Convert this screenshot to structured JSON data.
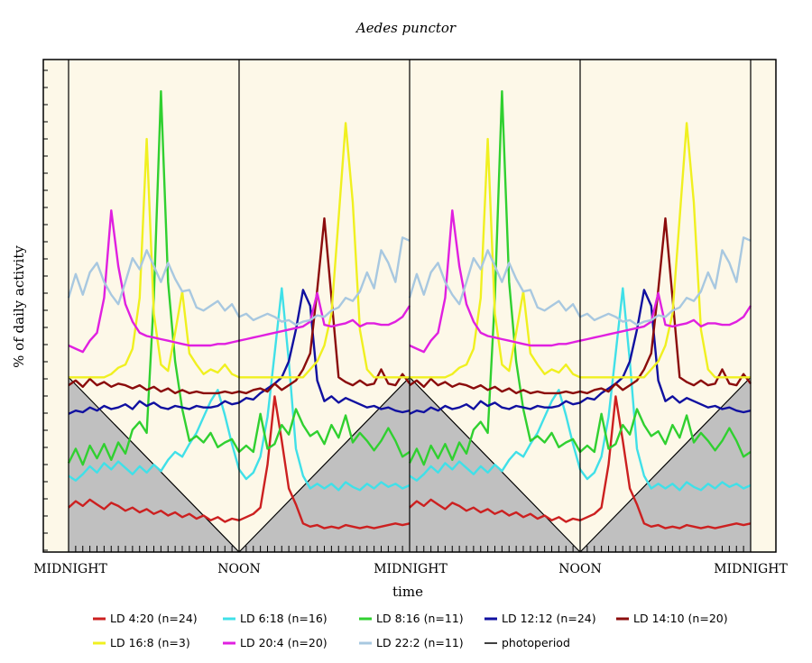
{
  "chart_data": {
    "type": "line",
    "title": "Aedes punctor",
    "xlabel": "time",
    "ylabel": "% of daily activity",
    "x_tick_labels": [
      "MIDNIGHT",
      "NOON",
      "MIDNIGHT",
      "NOON",
      "MIDNIGHT"
    ],
    "x_unit": "hours",
    "x_range": [
      0,
      48
    ],
    "plot_background": "#fdf8e8",
    "dark_background": "#c0c0c0",
    "photoperiod": {
      "name": "photoperiod",
      "color": "#000000"
    },
    "series": [
      {
        "name": "LD 4:20 (n=24)",
        "color": "#cc2020",
        "x": [
          0,
          0.5,
          1,
          1.5,
          2,
          2.5,
          3,
          3.5,
          4,
          4.5,
          5,
          5.5,
          6,
          6.5,
          7,
          7.5,
          8,
          8.5,
          9,
          9.5,
          10,
          10.5,
          11,
          11.5,
          12,
          12.5,
          13,
          13.5,
          14,
          14.5,
          15,
          15.5,
          16,
          16.5,
          17,
          17.5,
          18,
          18.5,
          19,
          19.5,
          20,
          20.5,
          21,
          21.5,
          22,
          22.5,
          23,
          23.5,
          24
        ],
        "y": [
          2.8,
          3.2,
          2.9,
          3.3,
          3.0,
          2.7,
          3.1,
          2.9,
          2.6,
          2.8,
          2.5,
          2.7,
          2.4,
          2.6,
          2.3,
          2.5,
          2.2,
          2.4,
          2.1,
          2.3,
          2.0,
          2.2,
          1.9,
          2.1,
          2.0,
          2.2,
          2.4,
          2.8,
          5.5,
          9.8,
          7.0,
          4.0,
          3.0,
          1.8,
          1.6,
          1.7,
          1.5,
          1.6,
          1.5,
          1.7,
          1.6,
          1.5,
          1.6,
          1.5,
          1.6,
          1.7,
          1.8,
          1.7,
          1.8
        ]
      },
      {
        "name": "LD 6:18 (n=16)",
        "color": "#40e0e8",
        "x": [
          0,
          0.5,
          1,
          1.5,
          2,
          2.5,
          3,
          3.5,
          4,
          4.5,
          5,
          5.5,
          6,
          6.5,
          7,
          7.5,
          8,
          8.5,
          9,
          9.5,
          10,
          10.5,
          11,
          11.5,
          12,
          12.5,
          13,
          13.5,
          14,
          14.5,
          15,
          15.5,
          16,
          16.5,
          17,
          17.5,
          18,
          18.5,
          19,
          19.5,
          20,
          20.5,
          21,
          21.5,
          22,
          22.5,
          23,
          23.5,
          24
        ],
        "y": [
          4.8,
          4.5,
          4.9,
          5.4,
          5.0,
          5.6,
          5.2,
          5.7,
          5.3,
          4.9,
          5.4,
          5.0,
          5.5,
          5.1,
          5.8,
          6.3,
          6.0,
          6.8,
          7.5,
          8.5,
          9.5,
          10.2,
          8.6,
          6.8,
          5.2,
          4.6,
          5.0,
          6.0,
          8.5,
          12.5,
          16.6,
          12.0,
          6.5,
          4.8,
          4.0,
          4.3,
          4.0,
          4.3,
          3.9,
          4.4,
          4.1,
          3.9,
          4.3,
          4.0,
          4.4,
          4.1,
          4.3,
          4.0,
          4.2
        ]
      },
      {
        "name": "LD 8:16 (n=11)",
        "color": "#30d030",
        "x": [
          0,
          0.5,
          1,
          1.5,
          2,
          2.5,
          3,
          3.5,
          4,
          4.5,
          5,
          5.5,
          6,
          6.5,
          7,
          7.5,
          8,
          8.5,
          9,
          9.5,
          10,
          10.5,
          11,
          11.5,
          12,
          12.5,
          13,
          13.5,
          14,
          14.5,
          15,
          15.5,
          16,
          16.5,
          17,
          17.5,
          18,
          18.5,
          19,
          19.5,
          20,
          20.5,
          21,
          21.5,
          22,
          22.5,
          23,
          23.5,
          24
        ],
        "y": [
          5.6,
          6.5,
          5.5,
          6.7,
          5.9,
          6.8,
          5.8,
          6.9,
          6.2,
          7.7,
          8.2,
          7.5,
          16.0,
          29.0,
          17.0,
          12.0,
          9.0,
          7.0,
          7.3,
          6.9,
          7.5,
          6.6,
          6.9,
          7.1,
          6.3,
          6.7,
          6.3,
          8.7,
          6.5,
          6.8,
          8.0,
          7.4,
          9.0,
          8.0,
          7.3,
          7.6,
          6.8,
          8.0,
          7.2,
          8.6,
          6.9,
          7.5,
          7.0,
          6.4,
          7.0,
          7.8,
          7.0,
          6.0,
          6.3
        ]
      },
      {
        "name": "LD 12:12 (n=24)",
        "color": "#1010a0",
        "x": [
          0,
          0.5,
          1,
          1.5,
          2,
          2.5,
          3,
          3.5,
          4,
          4.5,
          5,
          5.5,
          6,
          6.5,
          7,
          7.5,
          8,
          8.5,
          9,
          9.5,
          10,
          10.5,
          11,
          11.5,
          12,
          12.5,
          13,
          13.5,
          14,
          14.5,
          15,
          15.5,
          16,
          16.5,
          17,
          17.5,
          18,
          18.5,
          19,
          19.5,
          20,
          20.5,
          21,
          21.5,
          22,
          22.5,
          23,
          23.5,
          24
        ],
        "y": [
          8.7,
          8.9,
          8.8,
          9.1,
          8.9,
          9.2,
          9.0,
          9.1,
          9.3,
          9.0,
          9.5,
          9.2,
          9.4,
          9.1,
          9.0,
          9.2,
          9.1,
          9.0,
          9.2,
          9.1,
          9.1,
          9.2,
          9.5,
          9.3,
          9.4,
          9.7,
          9.6,
          10.0,
          10.3,
          10.6,
          11.0,
          12.0,
          14.0,
          16.5,
          15.5,
          10.8,
          9.5,
          9.8,
          9.4,
          9.7,
          9.5,
          9.3,
          9.1,
          9.2,
          9.0,
          9.1,
          8.9,
          8.8,
          8.9
        ]
      },
      {
        "name": "LD 14:10 (n=20)",
        "color": "#8b0c0c",
        "x": [
          0,
          0.5,
          1,
          1.5,
          2,
          2.5,
          3,
          3.5,
          4,
          4.5,
          5,
          5.5,
          6,
          6.5,
          7,
          7.5,
          8,
          8.5,
          9,
          9.5,
          10,
          10.5,
          11,
          11.5,
          12,
          12.5,
          13,
          13.5,
          14,
          14.5,
          15,
          15.5,
          16,
          16.5,
          17,
          17.5,
          18,
          18.5,
          19,
          19.5,
          20,
          20.5,
          21,
          21.5,
          22,
          22.5,
          23,
          23.5,
          24
        ],
        "y": [
          10.5,
          10.8,
          10.4,
          10.9,
          10.5,
          10.7,
          10.4,
          10.6,
          10.5,
          10.3,
          10.5,
          10.2,
          10.4,
          10.1,
          10.3,
          10.0,
          10.2,
          10.0,
          10.1,
          10.0,
          10.0,
          10.0,
          10.1,
          10.0,
          10.1,
          10.0,
          10.2,
          10.3,
          10.1,
          10.6,
          10.2,
          10.5,
          10.8,
          11.5,
          12.5,
          16.5,
          21.0,
          16.0,
          11.0,
          10.7,
          10.5,
          10.8,
          10.5,
          10.6,
          11.5,
          10.6,
          10.5,
          11.2,
          10.6
        ]
      },
      {
        "name": "LD 16:8 (n=3)",
        "color": "#f0f020",
        "x": [
          0,
          0.5,
          1,
          1.5,
          2,
          2.5,
          3,
          3.5,
          4,
          4.5,
          5,
          5.5,
          6,
          6.5,
          7,
          7.5,
          8,
          8.5,
          9,
          9.5,
          10,
          10.5,
          11,
          11.5,
          12,
          12.5,
          13,
          13.5,
          14,
          14.5,
          15,
          15.5,
          16,
          16.5,
          17,
          17.5,
          18,
          18.5,
          19,
          19.5,
          20,
          20.5,
          21,
          21.5,
          22,
          22.5,
          23,
          23.5,
          24
        ],
        "y": [
          11.0,
          11.0,
          11.0,
          11.0,
          11.0,
          11.0,
          11.2,
          11.6,
          11.8,
          12.8,
          16.0,
          26.0,
          15.0,
          11.8,
          11.4,
          13.8,
          16.4,
          12.5,
          11.8,
          11.2,
          11.5,
          11.3,
          11.8,
          11.2,
          11.0,
          11.0,
          11.0,
          11.0,
          11.0,
          11.0,
          11.0,
          11.0,
          11.0,
          11.0,
          11.5,
          12.0,
          13.0,
          15.0,
          21.0,
          27.0,
          22.0,
          14.0,
          11.5,
          11.0,
          11.0,
          11.0,
          11.0,
          11.0,
          11.0
        ]
      },
      {
        "name": "LD 20:4 (n=20)",
        "color": "#e020e0",
        "x": [
          0,
          0.5,
          1,
          1.5,
          2,
          2.5,
          3,
          3.5,
          4,
          4.5,
          5,
          5.5,
          6,
          6.5,
          7,
          7.5,
          8,
          8.5,
          9,
          9.5,
          10,
          10.5,
          11,
          11.5,
          12,
          12.5,
          13,
          13.5,
          14,
          14.5,
          15,
          15.5,
          16,
          16.5,
          17,
          17.5,
          18,
          18.5,
          19,
          19.5,
          20,
          20.5,
          21,
          21.5,
          22,
          22.5,
          23,
          23.5,
          24
        ],
        "y": [
          13.0,
          12.8,
          12.6,
          13.3,
          13.8,
          16.0,
          21.5,
          18.0,
          15.6,
          14.5,
          13.8,
          13.6,
          13.5,
          13.4,
          13.3,
          13.2,
          13.1,
          13.0,
          13.0,
          13.0,
          13.0,
          13.1,
          13.1,
          13.2,
          13.3,
          13.4,
          13.5,
          13.6,
          13.7,
          13.8,
          13.9,
          14.0,
          14.1,
          14.2,
          14.5,
          16.3,
          14.3,
          14.2,
          14.3,
          14.4,
          14.6,
          14.2,
          14.4,
          14.4,
          14.3,
          14.3,
          14.5,
          14.8,
          15.5
        ]
      },
      {
        "name": "LD 22:2 (n=11)",
        "color": "#a8c8e0",
        "x": [
          0,
          0.5,
          1,
          1.5,
          2,
          2.5,
          3,
          3.5,
          4,
          4.5,
          5,
          5.5,
          6,
          6.5,
          7,
          7.5,
          8,
          8.5,
          9,
          9.5,
          10,
          10.5,
          11,
          11.5,
          12,
          12.5,
          13,
          13.5,
          14,
          14.5,
          15,
          15.5,
          16,
          16.5,
          17,
          17.5,
          18,
          18.5,
          19,
          19.5,
          20,
          20.5,
          21,
          21.5,
          22,
          22.5,
          23,
          23.5,
          24
        ],
        "y": [
          16.0,
          17.5,
          16.2,
          17.6,
          18.2,
          17.0,
          16.2,
          15.6,
          17.0,
          18.5,
          17.8,
          19.0,
          18.0,
          17.0,
          18.2,
          17.2,
          16.4,
          16.5,
          15.4,
          15.2,
          15.5,
          15.8,
          15.2,
          15.6,
          14.8,
          15.0,
          14.6,
          14.8,
          15.0,
          14.8,
          14.5,
          14.6,
          14.3,
          14.5,
          14.6,
          14.9,
          14.8,
          15.2,
          15.4,
          16.0,
          15.8,
          16.4,
          17.6,
          16.6,
          19.0,
          18.2,
          17.0,
          19.8,
          19.6
        ]
      }
    ]
  }
}
